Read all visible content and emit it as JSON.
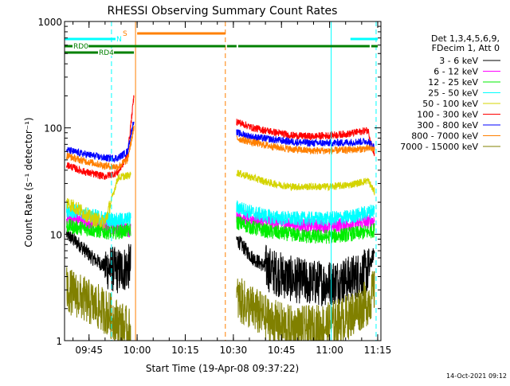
{
  "chart_data": {
    "type": "line",
    "title": "RHESSI Observing Summary Count Rates",
    "xlabel": "Start Time (19-Apr-08 09:37:22)",
    "ylabel": "Count Rate (s⁻¹ detector⁻¹)",
    "y_scale": "log",
    "ylim": [
      1,
      1000
    ],
    "xlim": [
      "09:37:22",
      "11:16:00"
    ],
    "x_ticks": [
      "09:45",
      "10:00",
      "10:15",
      "10:30",
      "10:45",
      "11:00",
      "11:15"
    ],
    "y_ticks": [
      "1",
      "10",
      "100",
      "1000"
    ],
    "grid": false,
    "legend": {
      "placement": "right",
      "header": [
        "Det 1,3,4,5,6,9,",
        "FDecim 1, Att 0"
      ],
      "entries": [
        {
          "label": "3 - 6 keV",
          "color": "#000000"
        },
        {
          "label": "6 - 12 keV",
          "color": "#ff00ff"
        },
        {
          "label": "12 - 25 keV",
          "color": "#00ee00"
        },
        {
          "label": "25 - 50 keV",
          "color": "#00ffff"
        },
        {
          "label": "50 - 100 keV",
          "color": "#d4d400"
        },
        {
          "label": "100 - 300 keV",
          "color": "#ff0000"
        },
        {
          "label": "300 - 800 keV",
          "color": "#0000ff"
        },
        {
          "label": "800 - 7000 keV",
          "color": "#ff8000"
        },
        {
          "label": "7000 - 15000 keV",
          "color": "#808000"
        }
      ]
    },
    "flags": [
      {
        "label": "RD0",
        "color": "#008000",
        "segments": [
          [
            "09:37:22",
            "10:27:30"
          ],
          [
            "10:28:00",
            "10:31:00"
          ],
          [
            "10:31:30",
            "11:12:30"
          ],
          [
            "11:13:00",
            "11:15:00"
          ]
        ]
      },
      {
        "label": "RD4",
        "color": "#008000",
        "segments": [
          [
            "09:37:22",
            "09:59:00"
          ]
        ]
      },
      {
        "label": "N",
        "color": "#00ffff",
        "segments": [
          [
            "09:37:22",
            "09:55:00"
          ],
          [
            "11:06:30",
            "11:15:00"
          ]
        ]
      },
      {
        "label": "S",
        "color": "#ff8000",
        "segments": [
          [
            "10:00:00",
            "10:27:30"
          ]
        ]
      }
    ],
    "vertical_markers": [
      {
        "time": "09:52:00",
        "color": "#00ffff",
        "style": "dashed"
      },
      {
        "time": "09:59:30",
        "color": "#ff8000",
        "style": "solid"
      },
      {
        "time": "10:27:30",
        "color": "#ff8000",
        "style": "dashed"
      },
      {
        "time": "11:00:30",
        "color": "#00ffff",
        "style": "solid"
      },
      {
        "time": "11:14:30",
        "color": "#00ffff",
        "style": "dashed"
      }
    ],
    "series": [
      {
        "name": "3 - 6 keV",
        "color": "#000000",
        "segments": [
          {
            "x": [
              "09:38",
              "09:42",
              "09:46",
              "09:50",
              "09:54",
              "09:58"
            ],
            "y": [
              10,
              8,
              6,
              5,
              4.5,
              5
            ]
          },
          {
            "x": [
              "10:31",
              "10:36",
              "10:42",
              "10:48",
              "10:54",
              "11:00",
              "11:06",
              "11:12",
              "11:14"
            ],
            "y": [
              9,
              6,
              4.5,
              3.8,
              3.5,
              3.5,
              3.8,
              4.5,
              7
            ]
          }
        ]
      },
      {
        "name": "6 - 12 keV",
        "color": "#ff00ff",
        "segments": [
          {
            "x": [
              "09:38",
              "09:42",
              "09:46",
              "09:50",
              "09:54",
              "09:58"
            ],
            "y": [
              14,
              13.5,
              13,
              12,
              11.5,
              11
            ]
          },
          {
            "x": [
              "10:31",
              "10:36",
              "10:42",
              "10:48",
              "10:54",
              "11:00",
              "11:06",
              "11:12",
              "11:14"
            ],
            "y": [
              15,
              14,
              13,
              12.5,
              12,
              12,
              12.5,
              13,
              13.5
            ]
          }
        ]
      },
      {
        "name": "12 - 25 keV",
        "color": "#00ee00",
        "segments": [
          {
            "x": [
              "09:38",
              "09:42",
              "09:46",
              "09:50",
              "09:54",
              "09:58"
            ],
            "y": [
              12,
              11.5,
              11,
              10.5,
              10.5,
              11
            ]
          },
          {
            "x": [
              "10:31",
              "10:36",
              "10:42",
              "10:48",
              "10:54",
              "11:00",
              "11:06",
              "11:12",
              "11:14"
            ],
            "y": [
              13,
              11.5,
              10.5,
              10,
              9.5,
              9.5,
              10,
              10.5,
              11
            ]
          }
        ]
      },
      {
        "name": "25 - 50 keV",
        "color": "#00ffff",
        "segments": [
          {
            "x": [
              "09:38",
              "09:42",
              "09:46",
              "09:50",
              "09:54",
              "09:58"
            ],
            "y": [
              17,
              16,
              15,
              14,
              13.5,
              14
            ]
          },
          {
            "x": [
              "10:31",
              "10:36",
              "10:42",
              "10:48",
              "10:54",
              "11:00",
              "11:06",
              "11:12",
              "11:14"
            ],
            "y": [
              18,
              16,
              14.5,
              14,
              14,
              14,
              14.5,
              16,
              17
            ]
          }
        ]
      },
      {
        "name": "50 - 100 keV",
        "color": "#d4d400",
        "segments": [
          {
            "x": [
              "09:38",
              "09:42",
              "09:46",
              "09:50",
              "09:54",
              "09:58"
            ],
            "y": [
              20,
              17,
              14,
              13,
              34,
              36
            ]
          },
          {
            "x": [
              "10:31",
              "10:36",
              "10:42",
              "10:48",
              "10:54",
              "11:00",
              "11:06",
              "11:12",
              "11:14"
            ],
            "y": [
              38,
              34,
              30,
              28,
              28,
              28,
              29,
              32,
              25
            ]
          }
        ]
      },
      {
        "name": "100 - 300 keV",
        "color": "#ff0000",
        "segments": [
          {
            "x": [
              "09:38",
              "09:42",
              "09:46",
              "09:50",
              "09:54",
              "09:57",
              "09:59"
            ],
            "y": [
              45,
              40,
              37,
              35,
              38,
              55,
              200
            ]
          },
          {
            "x": [
              "10:31",
              "10:36",
              "10:42",
              "10:48",
              "10:54",
              "11:00",
              "11:06",
              "11:12",
              "11:14"
            ],
            "y": [
              115,
              100,
              92,
              85,
              83,
              85,
              88,
              95,
              55
            ]
          }
        ]
      },
      {
        "name": "300 - 800 keV",
        "color": "#0000ff",
        "segments": [
          {
            "x": [
              "09:38",
              "09:42",
              "09:46",
              "09:50",
              "09:54",
              "09:57",
              "09:59"
            ],
            "y": [
              62,
              58,
              55,
              52,
              52,
              60,
              120
            ]
          },
          {
            "x": [
              "10:31",
              "10:36",
              "10:42",
              "10:48",
              "10:54",
              "11:00",
              "11:06",
              "11:12",
              "11:14"
            ],
            "y": [
              90,
              82,
              78,
              74,
              72,
              72,
              73,
              75,
              65
            ]
          }
        ]
      },
      {
        "name": "800 - 7000 keV",
        "color": "#ff8000",
        "segments": [
          {
            "x": [
              "09:38",
              "09:42",
              "09:46",
              "09:50",
              "09:54",
              "09:57",
              "09:59"
            ],
            "y": [
              55,
              50,
              47,
              44,
              43,
              50,
              100
            ]
          },
          {
            "x": [
              "10:31",
              "10:36",
              "10:42",
              "10:48",
              "10:54",
              "11:00",
              "11:06",
              "11:12",
              "11:14"
            ],
            "y": [
              80,
              73,
              67,
              63,
              61,
              61,
              62,
              64,
              63
            ]
          }
        ]
      },
      {
        "name": "7000 - 15000 keV",
        "color": "#808000",
        "segments": [
          {
            "x": [
              "09:38",
              "09:42",
              "09:46",
              "09:50",
              "09:54",
              "09:58"
            ],
            "y": [
              3,
              2.6,
              2.2,
              1.9,
              1.5,
              1.2
            ]
          },
          {
            "x": [
              "10:31",
              "10:36",
              "10:42",
              "10:48",
              "10:54",
              "11:00",
              "11:06",
              "11:12",
              "11:14"
            ],
            "y": [
              2.5,
              2,
              1.5,
              1.3,
              1.3,
              1.4,
              1.7,
              2.3,
              3
            ]
          }
        ]
      }
    ]
  },
  "footer": {
    "timestamp": "14-Oct-2021 09:12"
  }
}
